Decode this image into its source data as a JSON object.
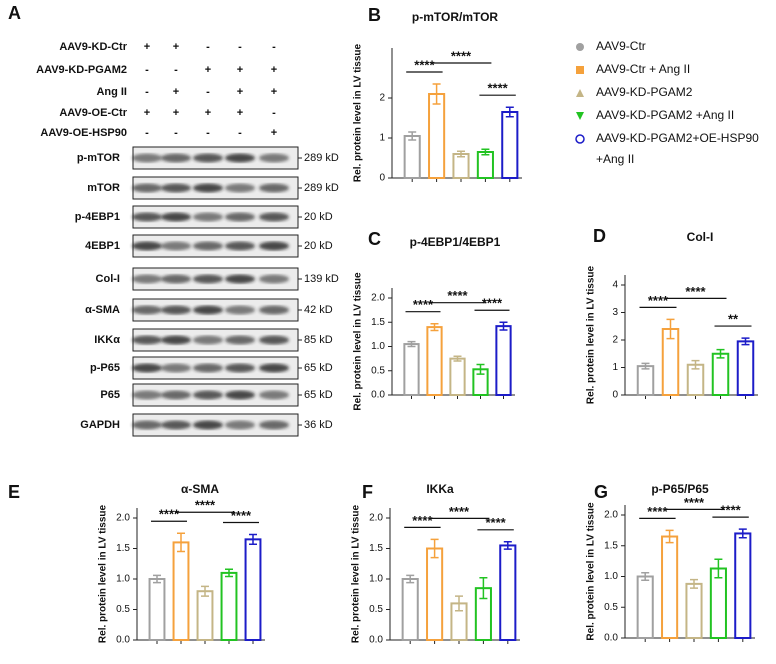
{
  "panel_labels": [
    "A",
    "B",
    "C",
    "D",
    "E",
    "F",
    "G"
  ],
  "blot": {
    "treatments": [
      {
        "name": "AAV9-KD-Ctr",
        "lanes": [
          "+",
          "+",
          "-",
          "-",
          "-"
        ]
      },
      {
        "name": "AAV9-KD-PGAM2",
        "lanes": [
          "-",
          "-",
          "+",
          "+",
          "+"
        ]
      },
      {
        "name": "Ang II",
        "lanes": [
          "-",
          "+",
          "-",
          "+",
          "+"
        ]
      },
      {
        "name": "AAV9-OE-Ctr",
        "lanes": [
          "+",
          "+",
          "+",
          "+",
          "-"
        ]
      },
      {
        "name": "AAV9-OE-HSP90",
        "lanes": [
          "-",
          "-",
          "-",
          "-",
          "+"
        ]
      }
    ],
    "bands": [
      {
        "name": "p-mTOR",
        "size": "289 kD"
      },
      {
        "name": "mTOR",
        "size": "289 kD"
      },
      {
        "name": "p-4EBP1",
        "size": "20 kD"
      },
      {
        "name": "4EBP1",
        "size": "20 kD"
      },
      {
        "name": "Col-I",
        "size": "139 kD"
      },
      {
        "name": "α-SMA",
        "size": "42 kD"
      },
      {
        "name": "IKKα",
        "size": "85 kD"
      },
      {
        "name": "p-P65",
        "size": "65 kD"
      },
      {
        "name": "P65",
        "size": "65 kD"
      },
      {
        "name": "GAPDH",
        "size": "36 kD"
      }
    ]
  },
  "legend": {
    "series": [
      {
        "name": "AAV9-Ctr",
        "color": "#a0a0a0",
        "marker": "circle"
      },
      {
        "name": "AAV9-Ctr + Ang II",
        "color": "#f5a13c",
        "marker": "square"
      },
      {
        "name": "AAV9-KD-PGAM2",
        "color": "#c4b586",
        "marker": "triangle"
      },
      {
        "name": "AAV9-KD-PGAM2 +Ang II",
        "color": "#22c322",
        "marker": "triangle-down"
      },
      {
        "name": "AAV9-KD-PGAM2+OE-HSP90",
        "name_line2": "+Ang II",
        "color": "#1c1cc8",
        "marker": "open-circle"
      }
    ]
  },
  "chart_data": [
    {
      "type": "bar",
      "title": "p-mTOR/mTOR",
      "y_label": "Rel. protein level in LV tissue",
      "categories": [
        null,
        null,
        null,
        null,
        null
      ],
      "values": [
        1.05,
        2.1,
        0.6,
        0.65,
        1.65
      ],
      "errors": [
        0.1,
        0.25,
        0.07,
        0.07,
        0.12
      ],
      "ylim": [
        0,
        3
      ],
      "yticks": [
        0,
        1,
        2
      ],
      "annotations": [
        {
          "label": "****",
          "groups": [
            0,
            1
          ]
        },
        {
          "label": "****",
          "groups": [
            1,
            3
          ]
        },
        {
          "label": "****",
          "groups": [
            3,
            4
          ]
        }
      ]
    },
    {
      "type": "bar",
      "title": "p-4EBP1/4EBP1",
      "y_label": "Rel. protein level in LV tissue",
      "categories": [
        null,
        null,
        null,
        null,
        null
      ],
      "values": [
        1.05,
        1.4,
        0.75,
        0.53,
        1.42
      ],
      "errors": [
        0.05,
        0.07,
        0.05,
        0.1,
        0.08
      ],
      "ylim": [
        0,
        2
      ],
      "yticks": [
        {
          "value": 0,
          "label": "0.0"
        },
        0.5,
        {
          "value": 1,
          "label": "1.0"
        },
        1.5,
        {
          "value": 2,
          "label": "2.0"
        }
      ],
      "annotations": [
        {
          "label": "****",
          "groups": [
            0,
            1
          ]
        },
        {
          "label": "****",
          "groups": [
            1,
            3
          ]
        },
        {
          "label": "****",
          "groups": [
            3,
            4
          ]
        }
      ]
    },
    {
      "type": "bar",
      "title": "Col-I",
      "y_label": "Rel. protein level in LV tissue",
      "categories": [
        null,
        null,
        null,
        null,
        null
      ],
      "values": [
        1.05,
        2.4,
        1.1,
        1.5,
        1.95
      ],
      "errors": [
        0.1,
        0.35,
        0.15,
        0.15,
        0.12
      ],
      "ylim": [
        0,
        4
      ],
      "yticks": [
        0,
        1,
        2,
        3,
        4
      ],
      "annotations": [
        {
          "label": "****",
          "groups": [
            0,
            1
          ]
        },
        {
          "label": "****",
          "groups": [
            1,
            3
          ]
        },
        {
          "label": "**",
          "groups": [
            3,
            4
          ]
        }
      ]
    },
    {
      "type": "bar",
      "title": "α-SMA",
      "y_label": "Rel. protein level in LV tissue",
      "categories": [
        null,
        null,
        null,
        null,
        null
      ],
      "values": [
        1.0,
        1.6,
        0.8,
        1.1,
        1.65
      ],
      "errors": [
        0.06,
        0.15,
        0.08,
        0.06,
        0.08
      ],
      "ylim": [
        0,
        2
      ],
      "yticks": [
        {
          "value": 0,
          "label": "0.0"
        },
        0.5,
        {
          "value": 1,
          "label": "1.0"
        },
        1.5,
        {
          "value": 2,
          "label": "2.0"
        }
      ],
      "annotations": [
        {
          "label": "****",
          "groups": [
            0,
            1
          ]
        },
        {
          "label": "****",
          "groups": [
            1,
            3
          ]
        },
        {
          "label": "****",
          "groups": [
            3,
            4
          ]
        }
      ]
    },
    {
      "type": "bar",
      "title": "IKKa",
      "y_label": "Rel. protein level in LV tissue",
      "categories": [
        null,
        null,
        null,
        null,
        null
      ],
      "values": [
        1.0,
        1.5,
        0.6,
        0.85,
        1.55
      ],
      "errors": [
        0.06,
        0.15,
        0.12,
        0.17,
        0.06
      ],
      "ylim": [
        0,
        2
      ],
      "yticks": [
        {
          "value": 0,
          "label": "0.0"
        },
        0.5,
        {
          "value": 1,
          "label": "1.0"
        },
        1.5,
        {
          "value": 2,
          "label": "2.0"
        }
      ],
      "annotations": [
        {
          "label": "****",
          "groups": [
            0,
            1
          ]
        },
        {
          "label": "****",
          "groups": [
            1,
            3
          ]
        },
        {
          "label": "****",
          "groups": [
            3,
            4
          ]
        }
      ]
    },
    {
      "type": "bar",
      "title": "p-P65/P65",
      "y_label": "Rel. protein level in LV tissue",
      "categories": [
        null,
        null,
        null,
        null,
        null
      ],
      "values": [
        1.0,
        1.65,
        0.88,
        1.13,
        1.7
      ],
      "errors": [
        0.06,
        0.1,
        0.07,
        0.15,
        0.07
      ],
      "ylim": [
        0,
        2
      ],
      "yticks": [
        {
          "value": 0,
          "label": "0.0"
        },
        0.5,
        {
          "value": 1,
          "label": "1.0"
        },
        1.5,
        {
          "value": 2,
          "label": "2.0"
        }
      ],
      "annotations": [
        {
          "label": "****",
          "groups": [
            0,
            1
          ]
        },
        {
          "label": "****",
          "groups": [
            1,
            3
          ]
        },
        {
          "label": "****",
          "groups": [
            3,
            4
          ]
        }
      ]
    }
  ]
}
